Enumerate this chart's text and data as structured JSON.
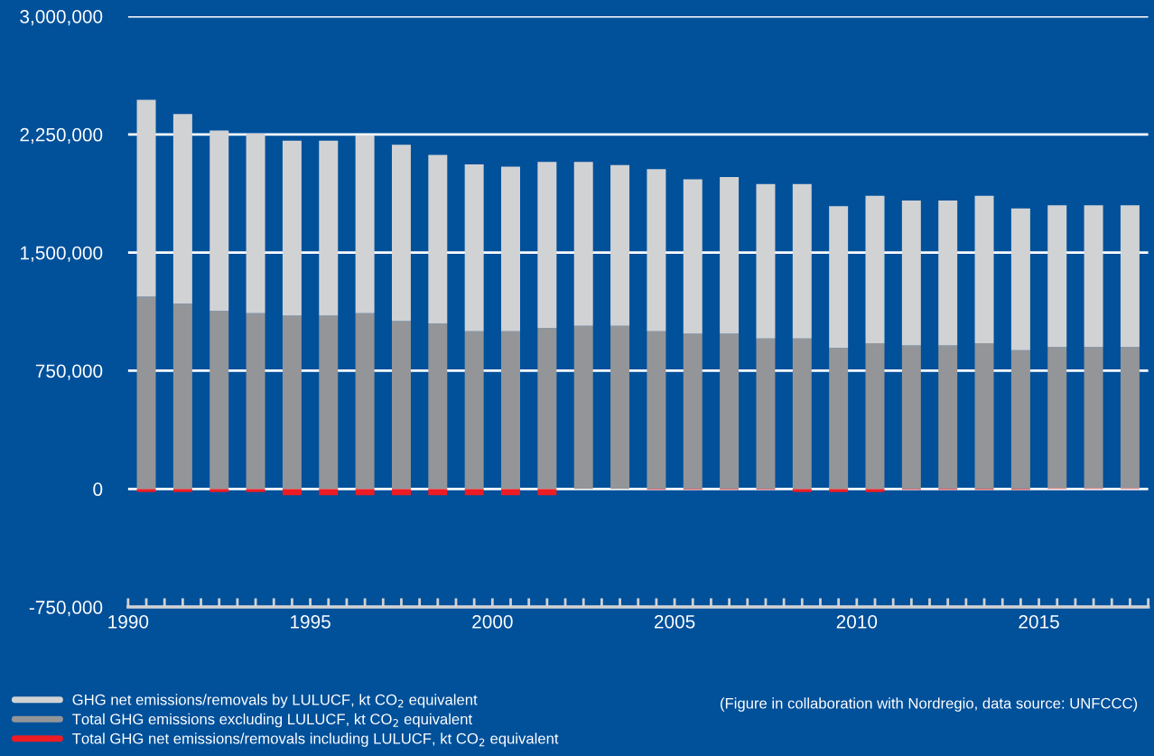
{
  "chart_data": {
    "type": "bar",
    "x": [
      1990.5,
      1991.5,
      1992.5,
      1993.5,
      1994.5,
      1995.5,
      1996.5,
      1997.5,
      1998.5,
      1999.5,
      2000.5,
      2001.5,
      2002.5,
      2003.5,
      2004.5,
      2005.5,
      2006.5,
      2007.5,
      2008.5,
      2009.5,
      2010.5,
      2011.5,
      2012.5,
      2013.5,
      2014.5,
      2015.5,
      2016.5,
      2017.5
    ],
    "series": [
      {
        "name": "Total GHG net emissions/removals including LULUCF, kt CO$_{2}$ equivalent",
        "color": "#ed1c24",
        "values": [
          -20000,
          -20000,
          -20000,
          -20000,
          -40000,
          -40000,
          -40000,
          -40000,
          -40000,
          -40000,
          -40000,
          -40000,
          null,
          null,
          -5000,
          -5000,
          -5000,
          -5000,
          -20000,
          -20000,
          -20000,
          -5000,
          -5000,
          -5000,
          -5000,
          5000,
          5000,
          5000
        ]
      },
      {
        "name": "Total GHG emissions excluding LULUCF, kt CO$_{2}$ equivalent",
        "color": "#939598",
        "values": [
          1220000,
          1175000,
          1130000,
          1115000,
          1100000,
          1100000,
          1115000,
          1065000,
          1050000,
          1000000,
          1000000,
          1020000,
          1035000,
          1035000,
          1000000,
          985000,
          985000,
          955000,
          955000,
          895000,
          925000,
          910000,
          910000,
          925000,
          880000,
          895000,
          895000,
          895000
        ]
      },
      {
        "name": "GHG net emissions/removals by LULUCF, kt CO$_{2}$ equivalent",
        "color": "#d1d2d4",
        "values": [
          1250000,
          1205000,
          1145000,
          1140000,
          1110000,
          1110000,
          1130000,
          1120000,
          1070000,
          1060000,
          1045000,
          1055000,
          1040000,
          1020000,
          1030000,
          980000,
          995000,
          980000,
          980000,
          900000,
          935000,
          920000,
          920000,
          935000,
          900000,
          900000,
          900000,
          900000
        ]
      }
    ],
    "stacked": true,
    "xlim": [
      1990,
      2018
    ],
    "xticks": [
      {
        "value": 1990,
        "label": "1990"
      },
      {
        "value": 1990.5,
        "label": null
      },
      {
        "value": 1991,
        "label": null
      },
      {
        "value": 1991.5,
        "label": null
      },
      {
        "value": 1992,
        "label": null
      },
      {
        "value": 1992.5,
        "label": null
      },
      {
        "value": 1993,
        "label": null
      },
      {
        "value": 1993.5,
        "label": null
      },
      {
        "value": 1994,
        "label": null
      },
      {
        "value": 1994.5,
        "label": null
      },
      {
        "value": 1995,
        "label": "1995"
      },
      {
        "value": 1995.5,
        "label": null
      },
      {
        "value": 1996,
        "label": null
      },
      {
        "value": 1996.5,
        "label": null
      },
      {
        "value": 1997,
        "label": null
      },
      {
        "value": 1997.5,
        "label": null
      },
      {
        "value": 1998,
        "label": null
      },
      {
        "value": 1998.5,
        "label": null
      },
      {
        "value": 1999,
        "label": null
      },
      {
        "value": 1999.5,
        "label": null
      },
      {
        "value": 2000,
        "label": "2000"
      },
      {
        "value": 2000.5,
        "label": null
      },
      {
        "value": 2001,
        "label": null
      },
      {
        "value": 2001.5,
        "label": null
      },
      {
        "value": 2002,
        "label": null
      },
      {
        "value": 2002.5,
        "label": null
      },
      {
        "value": 2003,
        "label": null
      },
      {
        "value": 2003.5,
        "label": null
      },
      {
        "value": 2004,
        "label": null
      },
      {
        "value": 2004.5,
        "label": null
      },
      {
        "value": 2005,
        "label": "2005"
      },
      {
        "value": 2005.5,
        "label": null
      },
      {
        "value": 2006,
        "label": null
      },
      {
        "value": 2006.5,
        "label": null
      },
      {
        "value": 2007,
        "label": null
      },
      {
        "value": 2007.5,
        "label": null
      },
      {
        "value": 2008,
        "label": null
      },
      {
        "value": 2008.5,
        "label": null
      },
      {
        "value": 2009,
        "label": null
      },
      {
        "value": 2009.5,
        "label": null
      },
      {
        "value": 2010,
        "label": "2010"
      },
      {
        "value": 2010.5,
        "label": null
      },
      {
        "value": 2011,
        "label": null
      },
      {
        "value": 2011.5,
        "label": null
      },
      {
        "value": 2012,
        "label": null
      },
      {
        "value": 2012.5,
        "label": null
      },
      {
        "value": 2013,
        "label": null
      },
      {
        "value": 2013.5,
        "label": null
      },
      {
        "value": 2014,
        "label": null
      },
      {
        "value": 2014.5,
        "label": null
      },
      {
        "value": 2015,
        "label": "2015"
      },
      {
        "value": 2015.5,
        "label": null
      },
      {
        "value": 2016,
        "label": null
      },
      {
        "value": 2016.5,
        "label": null
      },
      {
        "value": 2017,
        "label": null
      },
      {
        "value": 2017.5,
        "label": null
      },
      {
        "value": 2018,
        "label": null
      }
    ],
    "ylim": [
      -750000,
      3000000
    ],
    "yticks": [
      {
        "value": -750000,
        "label": "-750,000"
      },
      {
        "value": 0,
        "label": "0"
      },
      {
        "value": 750000,
        "label": "750,000"
      },
      {
        "value": 1500000,
        "label": "1,500,000"
      },
      {
        "value": 2250000,
        "label": "2,250,000"
      },
      {
        "value": 3000000,
        "label": "3,000,000"
      }
    ],
    "grid": "y",
    "legend": "bottom left",
    "annotations": [
      "(Figure in collaboration with Nordregio, data source: UNFCCC)"
    ]
  }
}
